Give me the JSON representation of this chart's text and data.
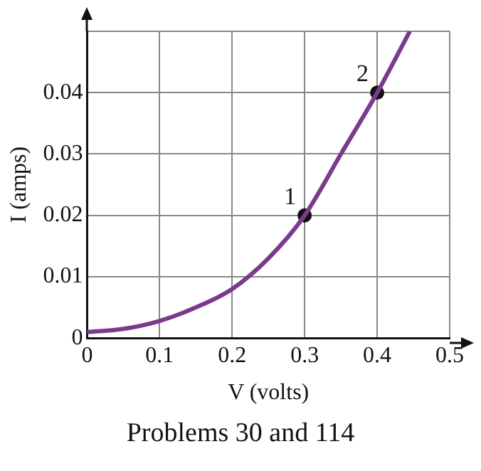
{
  "chart_data": {
    "type": "line",
    "xlabel": "V (volts)",
    "ylabel": "I (amps)",
    "annotations": [
      {
        "text": "1",
        "x": 0.3,
        "y": 0.02
      },
      {
        "text": "2",
        "x": 0.4,
        "y": 0.04
      },
      "Problems 30 and 114"
    ],
    "series": [
      {
        "color": "#7b3a8c",
        "x": [
          0,
          0.05,
          0.1,
          0.15,
          0.2,
          0.25,
          0.3,
          0.35,
          0.4,
          0.445
        ],
        "values": [
          0.001,
          0.0015,
          0.0028,
          0.005,
          0.008,
          0.013,
          0.02,
          0.03,
          0.04,
          0.05
        ],
        "marker": "none"
      },
      {
        "type": "scatter",
        "color": "#111111",
        "x": [
          0.3,
          0.4
        ],
        "values": [
          0.02,
          0.04
        ],
        "marker": "circle"
      }
    ],
    "xlim": [
      0,
      0.5
    ],
    "xticks": [
      0,
      0.1,
      0.2,
      0.3,
      0.4,
      0.5
    ],
    "ylim": [
      0,
      0.05
    ],
    "yticks": [
      0,
      0.01,
      0.02,
      0.03,
      0.04,
      {
        "value": 0.05,
        "label": null
      }
    ],
    "grid": true,
    "legend": false
  }
}
